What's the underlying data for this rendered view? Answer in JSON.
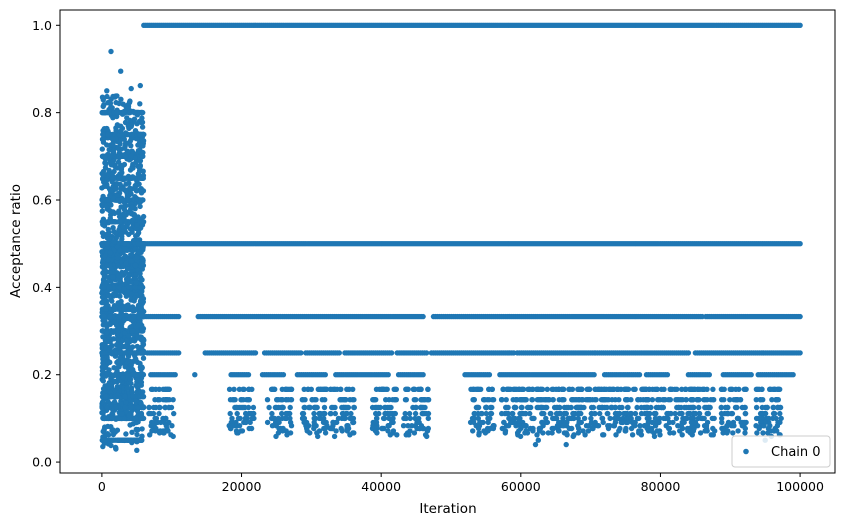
{
  "chart_data": {
    "type": "scatter",
    "xlabel": "Iteration",
    "ylabel": "Acceptance ratio",
    "xlim": [
      -6000,
      105000
    ],
    "ylim": [
      -0.025,
      1.035
    ],
    "x_ticks": [
      0,
      20000,
      40000,
      60000,
      80000,
      100000
    ],
    "x_tick_labels": [
      "0",
      "20000",
      "40000",
      "60000",
      "80000",
      "100000"
    ],
    "y_ticks": [
      0.0,
      0.2,
      0.4,
      0.6,
      0.8,
      1.0
    ],
    "y_tick_labels": [
      "0.0",
      "0.2",
      "0.4",
      "0.6",
      "0.8",
      "1.0"
    ],
    "legend_position": "bottom-right",
    "grid": false,
    "series": [
      {
        "name": "Chain 0",
        "color": "#1f77b4",
        "marker": "circle",
        "phases": [
          {
            "x_range": [
              0,
              6000
            ],
            "y_range": [
              0.025,
              0.94
            ],
            "description_levels": "dense scatter, most points between 0.1 and 0.75"
          },
          {
            "x_range": [
              6000,
              100000
            ],
            "levels": [
              1.0,
              0.5,
              0.333,
              0.25,
              0.2,
              0.167,
              0.143,
              0.125,
              0.111,
              0.1
            ]
          }
        ],
        "level_bands": [
          {
            "y": 1.0,
            "segments": [
              [
                6000,
                100000
              ]
            ]
          },
          {
            "y": 0.5,
            "segments": [
              [
                0,
                100000
              ]
            ]
          },
          {
            "y": 0.333,
            "segments": [
              [
                0,
                11000
              ],
              [
                13800,
                46000
              ],
              [
                47500,
                86000
              ],
              [
                86500,
                100000
              ]
            ]
          },
          {
            "y": 0.25,
            "segments": [
              [
                6500,
                11000
              ],
              [
                14800,
                22000
              ],
              [
                23300,
                28500
              ],
              [
                29200,
                34000
              ],
              [
                34800,
                41500
              ],
              [
                42300,
                46500
              ],
              [
                47200,
                59000
              ],
              [
                59500,
                70500
              ],
              [
                70700,
                84000
              ],
              [
                85000,
                89000
              ],
              [
                89300,
                100000
              ]
            ]
          },
          {
            "y": 0.2,
            "segments": [
              [
                7000,
                10500
              ],
              [
                18500,
                21000
              ],
              [
                23000,
                26000
              ],
              [
                28000,
                32000
              ],
              [
                33500,
                41000
              ],
              [
                42500,
                46000
              ],
              [
                52000,
                55500
              ],
              [
                57000,
                70500
              ],
              [
                72000,
                77000
              ],
              [
                78000,
                81000
              ],
              [
                84000,
                87000
              ],
              [
                89000,
                93000
              ],
              [
                94000,
                99000
              ]
            ]
          }
        ],
        "sparse_points": [
          [
            1300,
            0.94
          ],
          [
            2700,
            0.895
          ],
          [
            5500,
            0.862
          ],
          [
            4200,
            0.855
          ],
          [
            700,
            0.85
          ],
          [
            13300,
            0.2
          ],
          [
            62100,
            0.04
          ],
          [
            66500,
            0.04
          ],
          [
            2000,
            0.03
          ],
          [
            5000,
            0.027
          ],
          [
            95000,
            0.05
          ],
          [
            62500,
            0.05
          ]
        ]
      }
    ]
  }
}
